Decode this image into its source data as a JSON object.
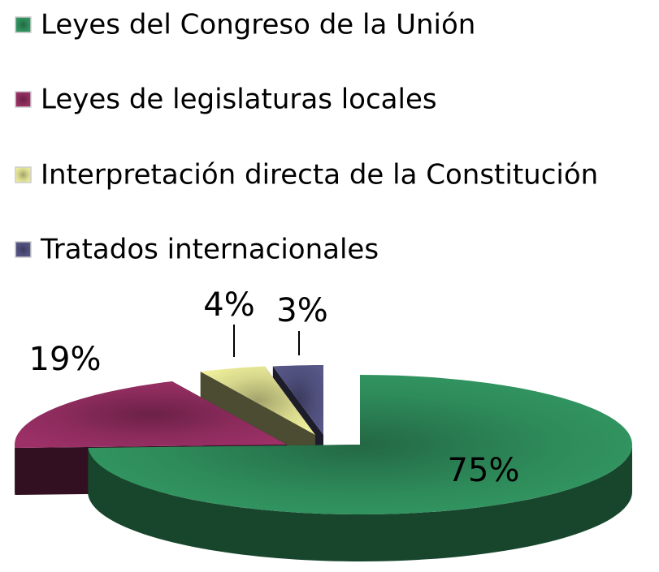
{
  "chart_data": {
    "type": "pie",
    "categories": [
      "Leyes del Congreso de la Unión",
      "Leyes de legislaturas locales",
      "Interpretación directa de la Constitución",
      "Tratados internacionales"
    ],
    "values": [
      75,
      19,
      4,
      3
    ],
    "value_labels": [
      "75%",
      "19%",
      "4%",
      "3%"
    ],
    "colors": [
      "#2e8b5a",
      "#8e2c5e",
      "#d9d98e",
      "#4f4f7c"
    ]
  }
}
